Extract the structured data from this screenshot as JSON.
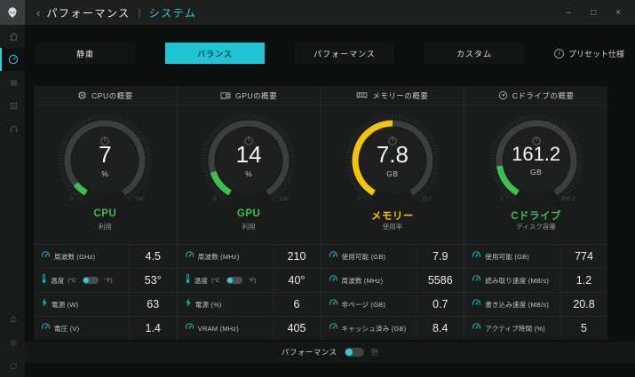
{
  "colors": {
    "accent": "#2bd0d8",
    "green": "#3ebd52",
    "yellow": "#f2c500",
    "icon_teal": "#1fb6b6",
    "panel_bg": "#1a1c1c",
    "ring_bg": "#3c3f3f"
  },
  "titlebar": {
    "back": "‹",
    "title": "パフォーマンス",
    "separator": "|",
    "subtitle": "システム",
    "window": {
      "minimize": "–",
      "maximize": "□",
      "close": "×"
    }
  },
  "tabs": {
    "items": [
      {
        "name": "tab-silent",
        "label": "静粛",
        "active": false
      },
      {
        "name": "tab-balanced",
        "label": "バランス",
        "active": true
      },
      {
        "name": "tab-performance",
        "label": "パフォーマンス",
        "active": false
      },
      {
        "name": "tab-custom",
        "label": "カスタム",
        "active": false
      }
    ],
    "preset_label": "プリセット仕様"
  },
  "panels": [
    {
      "id": "cpu",
      "header": {
        "icon": "cpu-icon",
        "title": "CPUの概要"
      },
      "gauge": {
        "value": "7",
        "unit": "%",
        "name": "CPU",
        "subtitle": "利用",
        "color": "#3ebd52",
        "fraction": 0.07,
        "min_label": "0",
        "max_label": "100"
      },
      "rows": [
        {
          "icon": "gauge-icon",
          "label": "周波数 (GHz)",
          "value": "4.5"
        },
        {
          "icon": "thermometer-icon",
          "label": "温度",
          "toggle": {
            "left": "(°C",
            "right": "°F)"
          },
          "value": "53°"
        },
        {
          "icon": "bolt-icon",
          "label": "電源 (W)",
          "value": "63"
        },
        {
          "icon": "gauge-icon",
          "label": "電圧 (V)",
          "value": "1.4"
        }
      ]
    },
    {
      "id": "gpu",
      "header": {
        "icon": "gpu-icon",
        "title": "GPUの概要"
      },
      "gauge": {
        "value": "14",
        "unit": "%",
        "name": "GPU",
        "subtitle": "利用",
        "color": "#3ebd52",
        "fraction": 0.14,
        "min_label": "0",
        "max_label": "100"
      },
      "rows": [
        {
          "icon": "gauge-icon",
          "label": "周波数 (MHz)",
          "value": "210"
        },
        {
          "icon": "thermometer-icon",
          "label": "温度",
          "toggle": {
            "left": "(°C",
            "right": "°F)"
          },
          "value": "40°"
        },
        {
          "icon": "bolt-icon",
          "label": "電源 (%)",
          "value": "6"
        },
        {
          "icon": "gauge-icon",
          "label": "VRAM (MHz)",
          "value": "405"
        }
      ]
    },
    {
      "id": "memory",
      "header": {
        "icon": "ram-icon",
        "title": "メモリーの概要"
      },
      "gauge": {
        "value": "7.8",
        "unit": "GB",
        "name": "メモリー",
        "subtitle": "使用率",
        "color": "#f2c500",
        "fraction": 0.5,
        "min_label": "0",
        "max_label": "15.7"
      },
      "rows": [
        {
          "icon": "gauge-icon",
          "label": "使用可能 (GB)",
          "value": "7.9"
        },
        {
          "icon": "gauge-icon",
          "label": "周波数 (MHz)",
          "value": "5586"
        },
        {
          "icon": "gauge-icon",
          "label": "非ページ (GB)",
          "value": "0.7"
        },
        {
          "icon": "gauge-icon",
          "label": "キャッシュ済み (GB)",
          "value": "8.4"
        }
      ]
    },
    {
      "id": "c-drive",
      "header": {
        "icon": "disk-icon",
        "title": "Cドライブの概要"
      },
      "gauge": {
        "value": "161.2",
        "unit": "GB",
        "name": "Cドライブ",
        "subtitle": "ディスク容量",
        "color": "#3ebd52",
        "fraction": 0.172,
        "min_label": "0",
        "max_label": "935.2"
      },
      "rows": [
        {
          "icon": "gauge-icon",
          "label": "使用可能 (GB)",
          "value": "774"
        },
        {
          "icon": "gauge-icon",
          "label": "読み取り速度 (MB/s)",
          "value": "1.2"
        },
        {
          "icon": "gauge-icon",
          "label": "書き込み速度 (MB/s)",
          "value": "20.8"
        },
        {
          "icon": "gauge-icon",
          "label": "アクティブ時間 (%)",
          "value": "5"
        }
      ]
    }
  ],
  "footer": {
    "label": "パフォーマンス",
    "right_label": "熱"
  }
}
